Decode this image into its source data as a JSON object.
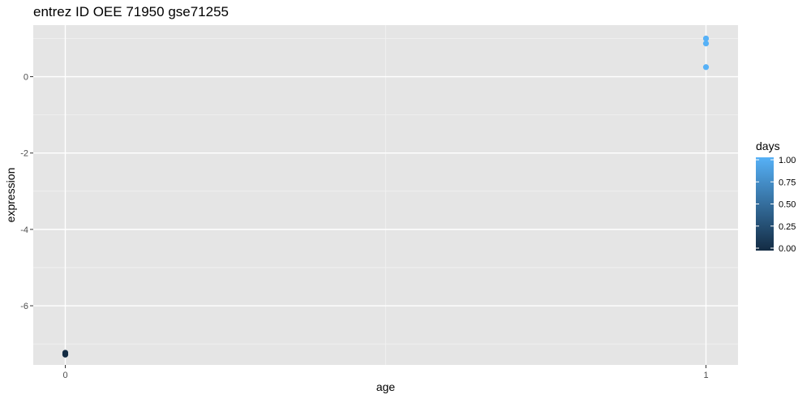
{
  "title": "entrez ID OEE 71950 gse71255",
  "chart_data": {
    "type": "scatter",
    "title": "entrez ID OEE 71950 gse71255",
    "xlabel": "age",
    "ylabel": "expression",
    "xlim": [
      -0.05,
      1.05
    ],
    "ylim": [
      -7.55,
      1.35
    ],
    "x_ticks": [
      0,
      1
    ],
    "x_tick_labels": [
      "0",
      "1"
    ],
    "y_ticks": [
      -6,
      -4,
      -2,
      0
    ],
    "y_tick_labels": [
      "-6",
      "-4",
      "-2",
      "0"
    ],
    "grid": true,
    "points": [
      {
        "x": 0,
        "y": -7.28,
        "days": 0
      },
      {
        "x": 0,
        "y": -7.23,
        "days": 0
      },
      {
        "x": 0,
        "y": -7.26,
        "days": 0
      },
      {
        "x": 1,
        "y": 1.0,
        "days": 1
      },
      {
        "x": 1,
        "y": 0.87,
        "days": 1
      },
      {
        "x": 1,
        "y": 0.25,
        "days": 1
      }
    ],
    "legend": {
      "title": "days",
      "placement": "right",
      "ticks": [
        1.0,
        0.75,
        0.5,
        0.25,
        0.0
      ],
      "tick_labels": [
        "1.00",
        "0.75",
        "0.50",
        "0.25",
        "0.00"
      ],
      "color_low": "#132B43",
      "color_high": "#56B1F7"
    },
    "colors": {
      "panel_background": "#E5E5E5",
      "grid_major": "#FFFFFF",
      "grid_minor": "#F2F2F2"
    }
  }
}
